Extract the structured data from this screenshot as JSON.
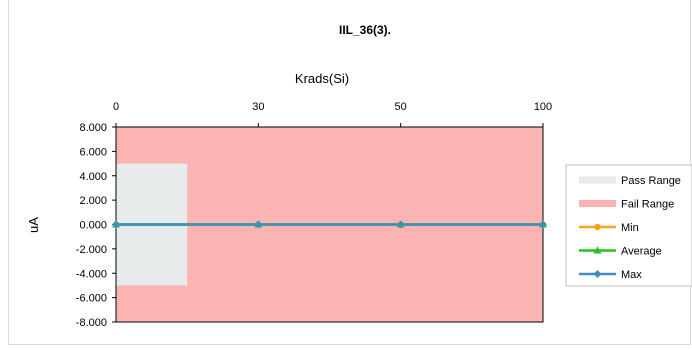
{
  "chart_data": {
    "type": "line",
    "title": "IIL_36(3).",
    "xlabel": "Krads(Si)",
    "ylabel": "uA",
    "x_axis_position": "top",
    "categories": [
      "0",
      "30",
      "50",
      "100"
    ],
    "ylim": [
      -8,
      8
    ],
    "y_ticks": [
      "8.000",
      "6.000",
      "4.000",
      "2.000",
      "0.000",
      "-2.000",
      "-4.000",
      "-6.000",
      "-8.000"
    ],
    "y_tick_values": [
      8,
      6,
      4,
      2,
      0,
      -2,
      -4,
      -6,
      -8
    ],
    "grid": false,
    "legend_position": "right",
    "pass_range": {
      "name": "Pass Range",
      "y_range": [
        -5,
        5
      ],
      "x_extent_fraction_of_first_interval": 0.5,
      "color": "#e7ebeb"
    },
    "fail_range": {
      "name": "Fail Range",
      "y_range": [
        -8,
        8
      ],
      "color": "#fbb4b4"
    },
    "series": [
      {
        "name": "Min",
        "values": [
          0,
          0,
          0,
          0
        ],
        "color": "#f7a21b",
        "marker": "circle"
      },
      {
        "name": "Average",
        "values": [
          0,
          0,
          0,
          0
        ],
        "color": "#22c422",
        "marker": "triangle"
      },
      {
        "name": "Max",
        "values": [
          0,
          0,
          0,
          0
        ],
        "color": "#3d8fbf",
        "marker": "diamond"
      }
    ]
  }
}
